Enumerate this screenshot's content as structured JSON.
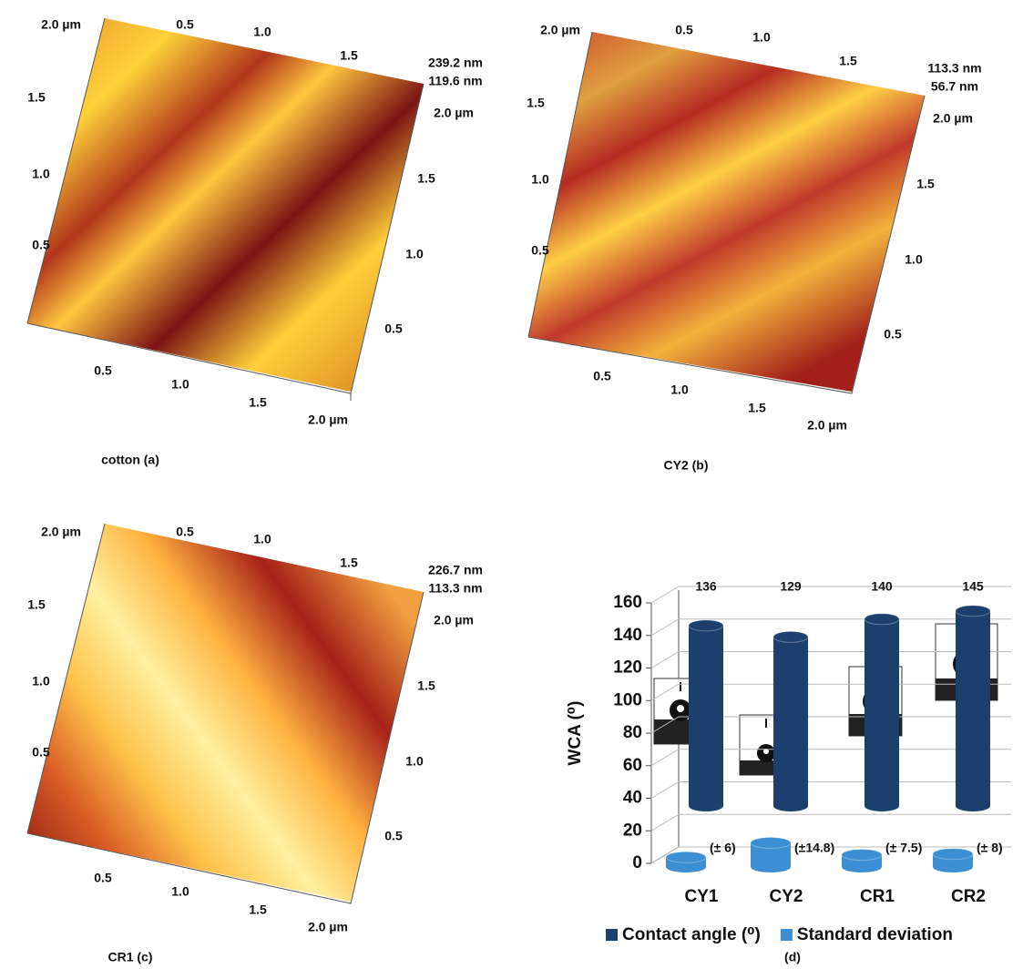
{
  "afm_panels": [
    {
      "caption": "cotton  (a)",
      "back_axis": [
        "2.0 µm",
        "0.5",
        "1.0",
        "1.5"
      ],
      "left_axis": [
        "1.5",
        "1.0",
        "0.5"
      ],
      "front_axis": [
        "0.5",
        "1.0",
        "1.5",
        "2.0 µm"
      ],
      "right_axis": [
        "2.0 µm",
        "1.5",
        "1.0",
        "0.5"
      ],
      "z_labels": [
        "239.2 nm",
        "119.6 nm"
      ]
    },
    {
      "caption": "CY2  (b)",
      "back_axis": [
        "2.0 µm",
        "0.5",
        "1.0",
        "1.5"
      ],
      "left_axis": [
        "1.5",
        "1.0",
        "0.5"
      ],
      "front_axis": [
        "0.5",
        "1.0",
        "1.5",
        "2.0 µm"
      ],
      "right_axis": [
        "2.0 µm",
        "1.5",
        "1.0",
        "0.5"
      ],
      "z_labels": [
        "113.3 nm",
        "56.7 nm"
      ]
    },
    {
      "caption": "CR1   (c)",
      "back_axis": [
        "2.0 µm",
        "0.5",
        "1.0",
        "1.5"
      ],
      "left_axis": [
        "1.5",
        "1.0",
        "0.5"
      ],
      "front_axis": [
        "0.5",
        "1.0",
        "1.5",
        "2.0 µm"
      ],
      "right_axis": [
        "2.0 µm",
        "1.5",
        "1.0",
        "0.5"
      ],
      "z_labels": [
        "226.7 nm",
        "113.3 nm"
      ]
    }
  ],
  "chart_data": {
    "type": "bar",
    "caption": "(d)",
    "y_label": "WCA (⁰)",
    "categories": [
      "CY1",
      "CY2",
      "CR1",
      "CR2"
    ],
    "series": [
      {
        "name": "Contact angle (⁰)",
        "color": "#1c3f6e",
        "values": [
          136,
          129,
          140,
          145
        ]
      },
      {
        "name": "Standard deviation",
        "color": "#3b8fd2",
        "values": [
          6,
          14.8,
          7.5,
          8
        ],
        "value_labels": [
          "(± 6)",
          "(±14.8)",
          "(± 7.5)",
          "(± 8)"
        ]
      }
    ],
    "ylim": [
      0,
      160
    ],
    "yticks": [
      0,
      20,
      40,
      60,
      80,
      100,
      120,
      140,
      160
    ],
    "grid": true,
    "legend": "bottom"
  }
}
